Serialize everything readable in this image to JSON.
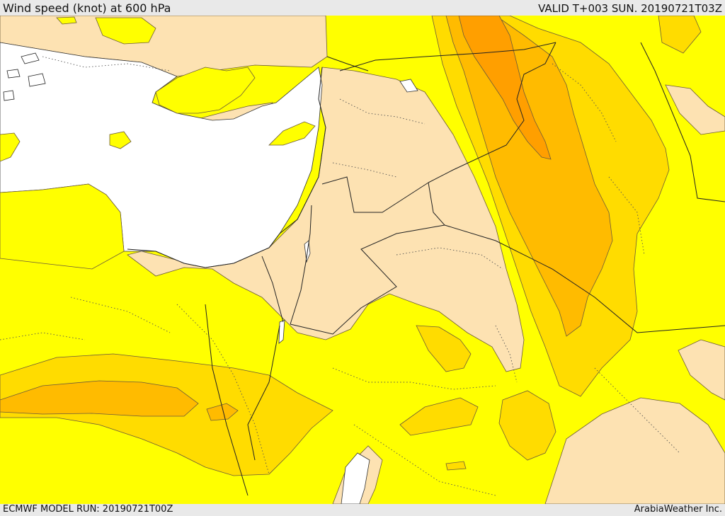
{
  "header": {
    "title": "Wind speed (knot) at 600 hPa",
    "valid": "VALID T+003 SUN. 20190721T03Z"
  },
  "footer": {
    "model_run": "ECMWF MODEL RUN: 20190721T00Z",
    "credit": "ArabiaWeather Inc."
  },
  "colors": {
    "sea": "#ffffff",
    "calm": "#fde2b2",
    "level_1": "#ffff00",
    "level_2": "#ffdc00",
    "level_3": "#ffbb00",
    "level_4": "#ff9f00",
    "contour": "#6b5a3a",
    "border": "#333333"
  }
}
